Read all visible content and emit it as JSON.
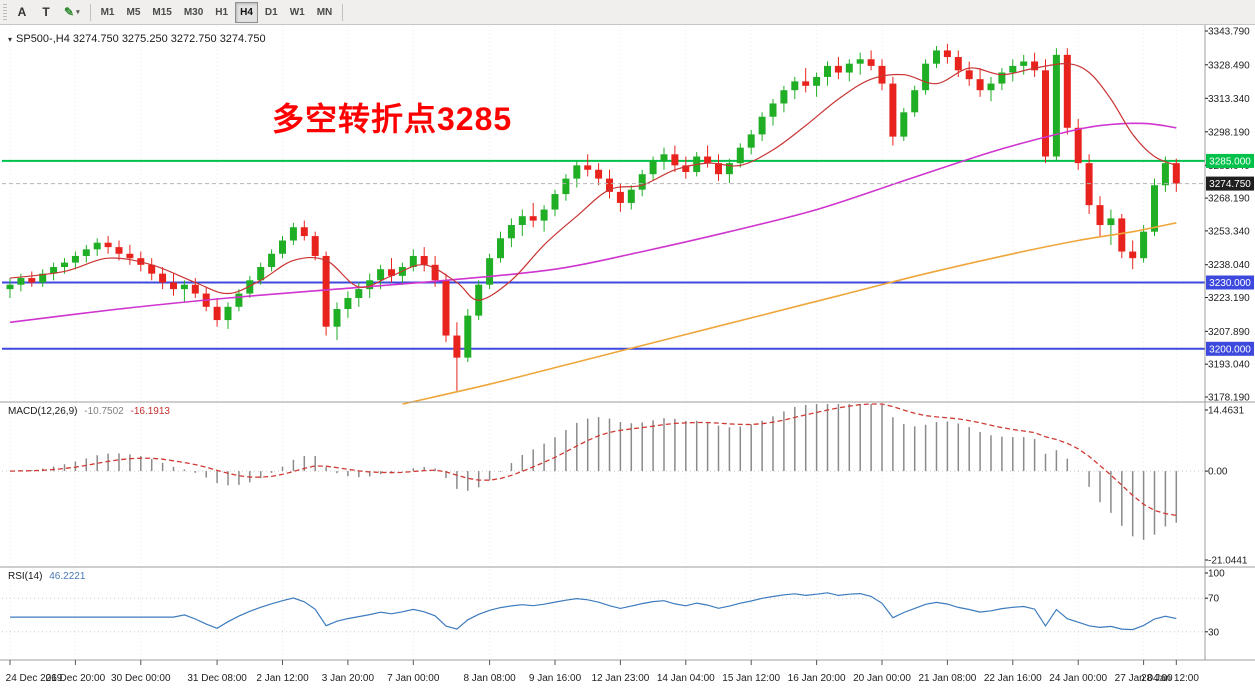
{
  "toolbar": {
    "tools": [
      {
        "name": "arrow-tool",
        "label": "A"
      },
      {
        "name": "text-tool",
        "label": "T"
      },
      {
        "name": "draw-tool",
        "label": "✎",
        "caret": "▾"
      }
    ],
    "timeframes": [
      "M1",
      "M5",
      "M15",
      "M30",
      "H1",
      "H4",
      "D1",
      "W1",
      "MN"
    ],
    "active_timeframe": "H4"
  },
  "chart": {
    "title_line": "SP500-,H4 3274.750 3275.250 3272.750 3274.750",
    "annotation": "多空转折点3285",
    "price_axis_labels": [
      "3343.790",
      "3328.490",
      "3313.340",
      "3298.190",
      "3283.040",
      "3268.190",
      "3253.340",
      "3238.040",
      "3223.190",
      "3207.890",
      "3193.040",
      "3178.190"
    ],
    "hlines": [
      {
        "price": 3285.0,
        "label": "3285.000",
        "color": "#00c24b"
      },
      {
        "price": 3230.0,
        "label": "3230.000",
        "color": "#3d49dc"
      },
      {
        "price": 3200.0,
        "label": "3200.000",
        "color": "#3d49dc"
      }
    ],
    "current_price": {
      "label": "3274.750",
      "value": 3274.75,
      "badge_bg": "#1f1f1f"
    },
    "colors": {
      "bull": "#1fae24",
      "bear": "#e8231d",
      "ma_fast": "#c93434",
      "ma_mid": "#cf35cf",
      "ma_slow": "#efa63a",
      "macd_hist": "#8a8a8a",
      "macd_signal": "#d03a34",
      "rsi_line": "#3c7bbd",
      "axis_text": "#1e1e1e",
      "grid": "#ebebeb",
      "separator": "#9e9e9e",
      "price_line": "#b5b5b5"
    }
  },
  "chart_data": {
    "type": "candlestick",
    "symbol": "SP500-",
    "timeframe": "H4",
    "y_axis": {
      "min": 3178.19,
      "max": 3343.79
    },
    "ohlc": [
      [
        3227,
        3232,
        3223,
        3229
      ],
      [
        3229,
        3234,
        3226,
        3232
      ],
      [
        3232,
        3235,
        3228,
        3230
      ],
      [
        3230,
        3236,
        3228,
        3234
      ],
      [
        3234,
        3239,
        3231,
        3237
      ],
      [
        3237,
        3241,
        3234,
        3239
      ],
      [
        3239,
        3244,
        3236,
        3242
      ],
      [
        3242,
        3247,
        3239,
        3245
      ],
      [
        3245,
        3250,
        3242,
        3248
      ],
      [
        3248,
        3251,
        3243,
        3246
      ],
      [
        3246,
        3249,
        3240,
        3243
      ],
      [
        3243,
        3247,
        3238,
        3241
      ],
      [
        3241,
        3244,
        3235,
        3238
      ],
      [
        3238,
        3241,
        3231,
        3234
      ],
      [
        3234,
        3237,
        3227,
        3230
      ],
      [
        3230,
        3234,
        3224,
        3227
      ],
      [
        3227,
        3231,
        3221,
        3229
      ],
      [
        3229,
        3232,
        3223,
        3225
      ],
      [
        3225,
        3228,
        3217,
        3219
      ],
      [
        3219,
        3223,
        3210,
        3213
      ],
      [
        3213,
        3221,
        3209,
        3219
      ],
      [
        3219,
        3227,
        3217,
        3225
      ],
      [
        3225,
        3233,
        3223,
        3231
      ],
      [
        3231,
        3239,
        3229,
        3237
      ],
      [
        3237,
        3245,
        3235,
        3243
      ],
      [
        3243,
        3251,
        3241,
        3249
      ],
      [
        3249,
        3257,
        3247,
        3255
      ],
      [
        3255,
        3258,
        3249,
        3251
      ],
      [
        3251,
        3253,
        3240,
        3242
      ],
      [
        3242,
        3244,
        3206,
        3210
      ],
      [
        3210,
        3221,
        3204,
        3218
      ],
      [
        3218,
        3226,
        3214,
        3223
      ],
      [
        3223,
        3230,
        3219,
        3227
      ],
      [
        3227,
        3234,
        3223,
        3231
      ],
      [
        3231,
        3238,
        3227,
        3236
      ],
      [
        3236,
        3241,
        3230,
        3233
      ],
      [
        3233,
        3239,
        3229,
        3237
      ],
      [
        3237,
        3245,
        3235,
        3242
      ],
      [
        3242,
        3246,
        3235,
        3238
      ],
      [
        3238,
        3242,
        3228,
        3231
      ],
      [
        3231,
        3234,
        3203,
        3206
      ],
      [
        3206,
        3212,
        3181,
        3196
      ],
      [
        3196,
        3218,
        3194,
        3215
      ],
      [
        3215,
        3231,
        3213,
        3229
      ],
      [
        3229,
        3243,
        3227,
        3241
      ],
      [
        3241,
        3253,
        3239,
        3250
      ],
      [
        3250,
        3259,
        3246,
        3256
      ],
      [
        3256,
        3263,
        3251,
        3260
      ],
      [
        3260,
        3266,
        3255,
        3258
      ],
      [
        3258,
        3265,
        3253,
        3263
      ],
      [
        3263,
        3272,
        3260,
        3270
      ],
      [
        3270,
        3279,
        3267,
        3277
      ],
      [
        3277,
        3285,
        3273,
        3283
      ],
      [
        3283,
        3288,
        3278,
        3281
      ],
      [
        3281,
        3284,
        3274,
        3277
      ],
      [
        3277,
        3281,
        3268,
        3271
      ],
      [
        3271,
        3275,
        3262,
        3266
      ],
      [
        3266,
        3274,
        3263,
        3272
      ],
      [
        3272,
        3281,
        3269,
        3279
      ],
      [
        3279,
        3287,
        3276,
        3285
      ],
      [
        3285,
        3291,
        3281,
        3288
      ],
      [
        3288,
        3292,
        3280,
        3283
      ],
      [
        3283,
        3287,
        3277,
        3280
      ],
      [
        3280,
        3289,
        3278,
        3287
      ],
      [
        3287,
        3292,
        3282,
        3284
      ],
      [
        3284,
        3288,
        3276,
        3279
      ],
      [
        3279,
        3286,
        3275,
        3284
      ],
      [
        3284,
        3293,
        3282,
        3291
      ],
      [
        3291,
        3299,
        3288,
        3297
      ],
      [
        3297,
        3307,
        3294,
        3305
      ],
      [
        3305,
        3313,
        3301,
        3311
      ],
      [
        3311,
        3319,
        3307,
        3317
      ],
      [
        3317,
        3323,
        3313,
        3321
      ],
      [
        3321,
        3327,
        3316,
        3319
      ],
      [
        3319,
        3325,
        3314,
        3323
      ],
      [
        3323,
        3330,
        3319,
        3328
      ],
      [
        3328,
        3332,
        3322,
        3325
      ],
      [
        3325,
        3331,
        3321,
        3329
      ],
      [
        3329,
        3334,
        3324,
        3331
      ],
      [
        3331,
        3335,
        3326,
        3328
      ],
      [
        3328,
        3331,
        3317,
        3320
      ],
      [
        3320,
        3323,
        3292,
        3296
      ],
      [
        3296,
        3309,
        3294,
        3307
      ],
      [
        3307,
        3319,
        3305,
        3317
      ],
      [
        3317,
        3331,
        3315,
        3329
      ],
      [
        3329,
        3337,
        3327,
        3335
      ],
      [
        3335,
        3338,
        3329,
        3332
      ],
      [
        3332,
        3335,
        3323,
        3326
      ],
      [
        3326,
        3330,
        3319,
        3322
      ],
      [
        3322,
        3327,
        3314,
        3317
      ],
      [
        3317,
        3323,
        3312,
        3320
      ],
      [
        3320,
        3327,
        3317,
        3325
      ],
      [
        3325,
        3331,
        3321,
        3328
      ],
      [
        3328,
        3333,
        3324,
        3330
      ],
      [
        3330,
        3334,
        3323,
        3326
      ],
      [
        3326,
        3331,
        3284,
        3287
      ],
      [
        3287,
        3336,
        3285,
        3333
      ],
      [
        3333,
        3336,
        3297,
        3300
      ],
      [
        3300,
        3304,
        3281,
        3284
      ],
      [
        3284,
        3288,
        3261,
        3265
      ],
      [
        3265,
        3269,
        3251,
        3256
      ],
      [
        3256,
        3263,
        3247,
        3259
      ],
      [
        3259,
        3261,
        3241,
        3244
      ],
      [
        3244,
        3249,
        3236,
        3241
      ],
      [
        3241,
        3256,
        3239,
        3253
      ],
      [
        3253,
        3277,
        3251,
        3274
      ],
      [
        3274,
        3287,
        3271,
        3284
      ],
      [
        3284,
        3286,
        3271,
        3274.75
      ]
    ],
    "overlays": {
      "ma_fast_red": [
        [
          0,
          3232
        ],
        [
          5,
          3235
        ],
        [
          9,
          3241
        ],
        [
          13,
          3238
        ],
        [
          17,
          3230
        ],
        [
          20,
          3225
        ],
        [
          23,
          3231
        ],
        [
          26,
          3240
        ],
        [
          29,
          3240
        ],
        [
          32,
          3228
        ],
        [
          35,
          3233
        ],
        [
          38,
          3238
        ],
        [
          41,
          3230
        ],
        [
          43,
          3222
        ],
        [
          46,
          3231
        ],
        [
          49,
          3247
        ],
        [
          52,
          3260
        ],
        [
          55,
          3272
        ],
        [
          58,
          3274
        ],
        [
          61,
          3281
        ],
        [
          64,
          3284
        ],
        [
          67,
          3283
        ],
        [
          70,
          3290
        ],
        [
          73,
          3301
        ],
        [
          76,
          3313
        ],
        [
          79,
          3322
        ],
        [
          82,
          3324
        ],
        [
          85,
          3320
        ],
        [
          88,
          3327
        ],
        [
          91,
          3324
        ],
        [
          94,
          3327
        ],
        [
          97,
          3329
        ],
        [
          99,
          3325
        ],
        [
          101,
          3313
        ],
        [
          103,
          3297
        ],
        [
          105,
          3287
        ],
        [
          107,
          3283
        ]
      ],
      "ma_mid_magenta": [
        [
          0,
          3212
        ],
        [
          10,
          3218
        ],
        [
          20,
          3223
        ],
        [
          30,
          3227
        ],
        [
          40,
          3231
        ],
        [
          50,
          3236
        ],
        [
          58,
          3244
        ],
        [
          66,
          3253
        ],
        [
          74,
          3263
        ],
        [
          82,
          3276
        ],
        [
          90,
          3289
        ],
        [
          96,
          3297
        ],
        [
          100,
          3301
        ],
        [
          104,
          3302
        ],
        [
          107,
          3300
        ]
      ],
      "ma_slow_orange": [
        [
          36,
          3175
        ],
        [
          44,
          3184
        ],
        [
          52,
          3194
        ],
        [
          60,
          3204
        ],
        [
          68,
          3214
        ],
        [
          76,
          3224
        ],
        [
          84,
          3234
        ],
        [
          92,
          3243
        ],
        [
          98,
          3249
        ],
        [
          103,
          3253
        ],
        [
          107,
          3257
        ]
      ]
    },
    "time_labels": [
      {
        "bar": 0,
        "text": "24 Dec 2019"
      },
      {
        "bar": 6,
        "text": "26 Dec 20:00"
      },
      {
        "bar": 12,
        "text": "30 Dec 00:00"
      },
      {
        "bar": 19,
        "text": "31 Dec 08:00"
      },
      {
        "bar": 25,
        "text": "2 Jan 12:00"
      },
      {
        "bar": 31,
        "text": "3 Jan 20:00"
      },
      {
        "bar": 37,
        "text": "7 Jan 00:00"
      },
      {
        "bar": 44,
        "text": "8 Jan 08:00"
      },
      {
        "bar": 50,
        "text": "9 Jan 16:00"
      },
      {
        "bar": 56,
        "text": "12 Jan 23:00"
      },
      {
        "bar": 62,
        "text": "14 Jan 04:00"
      },
      {
        "bar": 68,
        "text": "15 Jan 12:00"
      },
      {
        "bar": 74,
        "text": "16 Jan 20:00"
      },
      {
        "bar": 80,
        "text": "20 Jan 00:00"
      },
      {
        "bar": 86,
        "text": "21 Jan 08:00"
      },
      {
        "bar": 92,
        "text": "22 Jan 16:00"
      },
      {
        "bar": 98,
        "text": "24 Jan 00:00"
      },
      {
        "bar": 104,
        "text": "27 Jan 04:00"
      },
      {
        "bar": 107,
        "text": "28 Jan 12:00"
      }
    ],
    "sub_charts": [
      {
        "type": "macd",
        "name": "MACD(12,26,9)",
        "main_value": "-10.7502",
        "signal_value": "-16.1913",
        "params": {
          "fast": 12,
          "slow": 26,
          "signal": 9
        },
        "axis": [
          {
            "v": 14.4631,
            "text": "14.4631"
          },
          {
            "v": 0,
            "text": "0.00"
          },
          {
            "v": -21.0441,
            "text": "-21.0441"
          }
        ]
      },
      {
        "type": "rsi",
        "name": "RSI(14)",
        "value": "46.2221",
        "period": 14,
        "axis": [
          {
            "v": 100,
            "text": "100"
          },
          {
            "v": 70,
            "text": "70"
          },
          {
            "v": 30,
            "text": "30"
          }
        ]
      }
    ]
  }
}
